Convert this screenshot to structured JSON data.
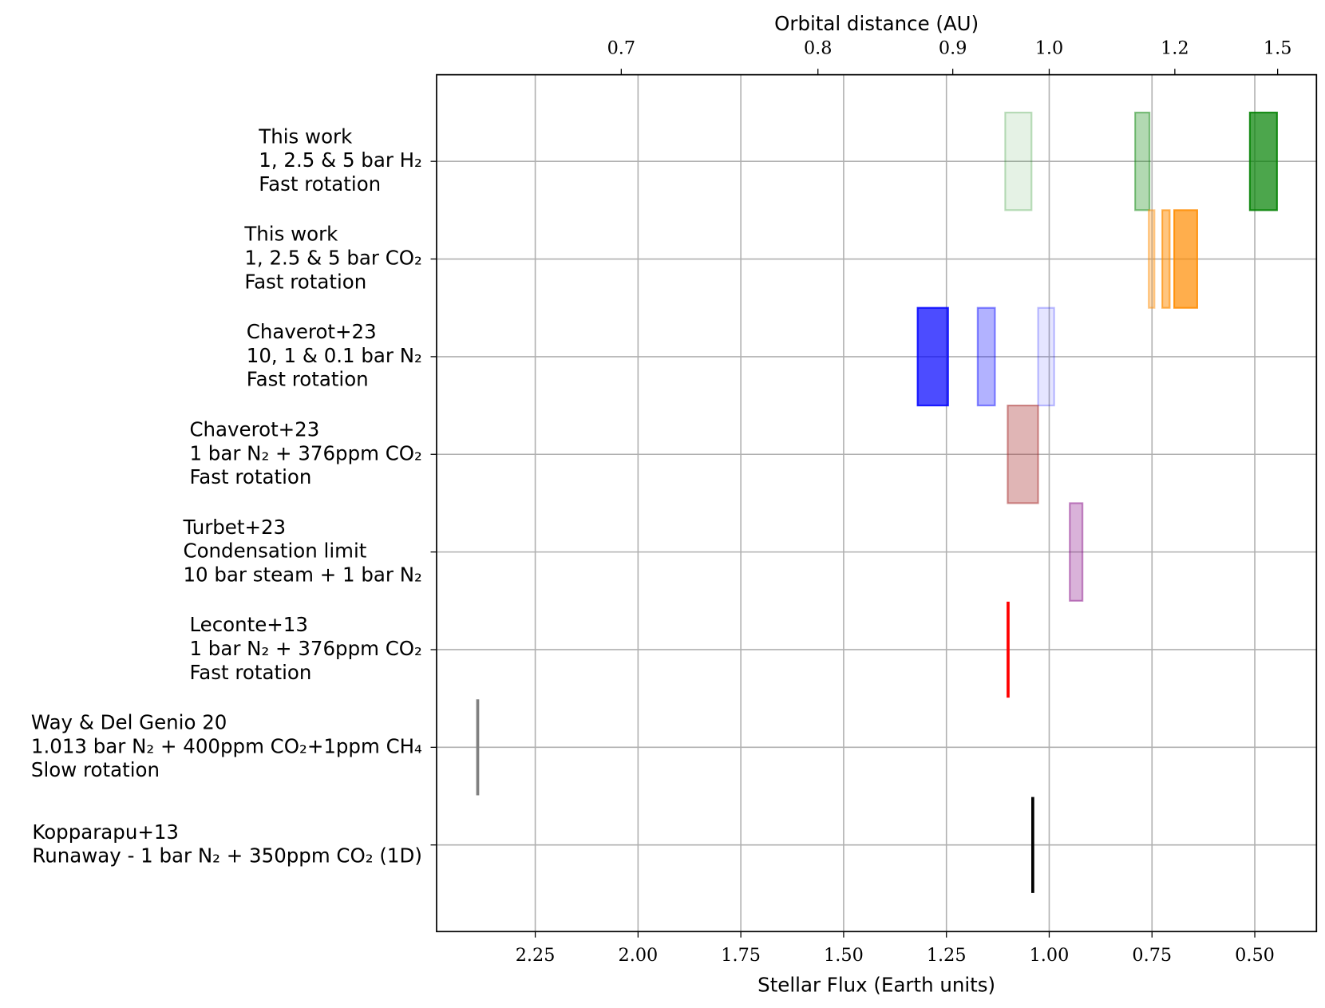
{
  "chart_data": {
    "type": "floating-bar",
    "xlabel": "Stellar Flux (Earth units)",
    "x2label": "Orbital distance (AU)",
    "xlim": [
      2.49,
      0.35
    ],
    "xticks": [
      2.25,
      {
        "value": 2,
        "label": "2.00"
      },
      1.75,
      {
        "value": 1.5,
        "label": "1.50"
      },
      1.25,
      {
        "value": 1,
        "label": "1.00"
      },
      0.75,
      {
        "value": 0.5,
        "label": "0.50"
      }
    ],
    "x2_scale": "inverse-square",
    "x2ticks": [
      0.7,
      0.8,
      0.9,
      {
        "value": 1,
        "label": "1.0"
      },
      1.2,
      1.5
    ],
    "grid": true,
    "categories": [
      [
        "This work",
        "1, 2.5 & 5 bar H₂",
        "Fast rotation"
      ],
      [
        "This work",
        "1, 2.5 & 5 bar CO₂",
        "Fast rotation"
      ],
      [
        "Chaverot+23",
        "10, 1 & 0.1 bar N₂",
        "Fast rotation"
      ],
      [
        "Chaverot+23",
        "1 bar N₂ + 376ppm CO₂",
        "Fast rotation"
      ],
      [
        "Turbet+23",
        "Condensation limit",
        "10 bar steam + 1 bar N₂"
      ],
      [
        "Leconte+13",
        "1 bar N₂ + 376ppm CO₂",
        "Fast rotation"
      ],
      [
        "Way & Del Genio 20",
        "1.013 bar N₂ + 400ppm CO₂+1ppm CH₄",
        "Slow rotation"
      ],
      [
        "Kopparapu+13",
        "Runaway - 1 bar N₂ + 350ppm CO₂ (1D)"
      ]
    ],
    "ranges": [
      [
        {
          "from": 1.107,
          "to": 1.043,
          "color": "green",
          "opacity": 0.1
        },
        {
          "from": 0.791,
          "to": 0.756,
          "color": "green",
          "opacity": 0.3
        },
        {
          "from": 0.512,
          "to": 0.446,
          "color": "green",
          "opacity": 0.7
        }
      ],
      [
        {
          "from": 0.758,
          "to": 0.744,
          "color": "darkorange",
          "opacity": 0.3
        },
        {
          "from": 0.725,
          "to": 0.707,
          "color": "darkorange",
          "opacity": 0.5
        },
        {
          "from": 0.696,
          "to": 0.64,
          "color": "darkorange",
          "opacity": 0.7
        }
      ],
      [
        {
          "from": 1.32,
          "to": 1.246,
          "color": "blue",
          "opacity": 0.7
        },
        {
          "from": 1.174,
          "to": 1.132,
          "color": "blue",
          "opacity": 0.3
        },
        {
          "from": 1.027,
          "to": 0.988,
          "color": "blue",
          "opacity": 0.1
        }
      ],
      [
        {
          "from": 1.101,
          "to": 1.027,
          "color": "brown",
          "opacity": 0.35
        }
      ],
      [
        {
          "from": 0.95,
          "to": 0.919,
          "color": "purple",
          "opacity": 0.3
        }
      ],
      [
        {
          "value": 1.1,
          "color": "red"
        }
      ],
      [
        {
          "value": 2.39,
          "color": "gray"
        }
      ],
      [
        {
          "value": 1.04,
          "color": "black"
        }
      ]
    ]
  }
}
